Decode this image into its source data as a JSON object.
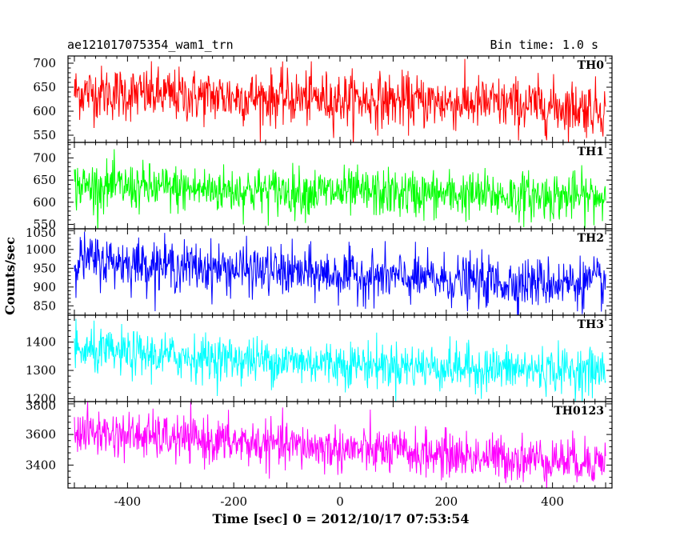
{
  "header": {
    "left_title": "ae121017075354_wam1_trn",
    "right_title": "Bin time: 1.0 s"
  },
  "chart_data": {
    "type": "line",
    "title": "ae121017075354_wam1_trn",
    "subtitle": "Bin time: 1.0 s",
    "xlabel": "Time [sec] 0 = 2012/10/17 07:53:54",
    "ylabel": "Counts/sec",
    "xlim": [
      -512,
      512
    ],
    "xticks": [
      -400,
      -200,
      0,
      200,
      400
    ],
    "x_start": -500,
    "x_end": 500,
    "x_step": 1,
    "grid": false,
    "legend": "none",
    "panels": [
      {
        "name": "TH0",
        "color": "#ff0000",
        "ylim": [
          535,
          715
        ],
        "yticks": [
          550,
          600,
          650,
          700
        ],
        "trend": [
          [
            -500,
            640
          ],
          [
            -300,
            632
          ],
          [
            0,
            625
          ],
          [
            300,
            615
          ],
          [
            500,
            605
          ]
        ],
        "noise_sd": 28
      },
      {
        "name": "TH1",
        "color": "#00ff00",
        "ylim": [
          540,
          735
        ],
        "yticks": [
          550,
          600,
          650,
          700
        ],
        "trend": [
          [
            -500,
            637
          ],
          [
            -300,
            630
          ],
          [
            0,
            622
          ],
          [
            300,
            615
          ],
          [
            500,
            612
          ]
        ],
        "noise_sd": 27
      },
      {
        "name": "TH2",
        "color": "#0000ff",
        "ylim": [
          825,
          1055
        ],
        "yticks": [
          850,
          900,
          950,
          1000,
          1050
        ],
        "trend": [
          [
            -500,
            975
          ],
          [
            -300,
            955
          ],
          [
            0,
            932
          ],
          [
            300,
            912
          ],
          [
            500,
            912
          ]
        ],
        "noise_sd": 33
      },
      {
        "name": "TH3",
        "color": "#00ffff",
        "ylim": [
          1190,
          1495
        ],
        "yticks": [
          1200,
          1300,
          1400
        ],
        "trend": [
          [
            -500,
            1368
          ],
          [
            -300,
            1348
          ],
          [
            0,
            1325
          ],
          [
            300,
            1305
          ],
          [
            500,
            1298
          ]
        ],
        "noise_sd": 40
      },
      {
        "name": "TH0123",
        "color": "#ff00ff",
        "ylim": [
          3250,
          3815
        ],
        "yticks": [
          3400,
          3600,
          3800
        ],
        "trend": [
          [
            -500,
            3620
          ],
          [
            -300,
            3570
          ],
          [
            0,
            3505
          ],
          [
            300,
            3448
          ],
          [
            500,
            3425
          ]
        ],
        "noise_sd": 75
      }
    ]
  }
}
